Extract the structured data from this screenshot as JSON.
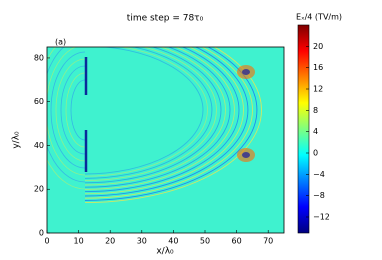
{
  "chart_data": {
    "type": "heatmap",
    "title": "time step = 78τ₀",
    "annotation": "(a)",
    "x_label": "x/λ₀",
    "y_label": "y/λ₀",
    "colorbar_label": "Eₓ/4 (TV/m)",
    "colormap": "jet",
    "xlim": [
      0,
      75
    ],
    "xticks": [
      0,
      10,
      20,
      30,
      40,
      50,
      60,
      70
    ],
    "ylim": [
      0,
      85
    ],
    "yticks": [
      0,
      20,
      40,
      60,
      80
    ],
    "clim": [
      -15,
      24
    ],
    "cticks": [
      {
        "value": -12,
        "label": "−12"
      },
      {
        "value": -8,
        "label": "−8"
      },
      {
        "value": -4,
        "label": "−4"
      },
      0,
      4,
      8,
      12,
      16,
      20
    ]
  }
}
